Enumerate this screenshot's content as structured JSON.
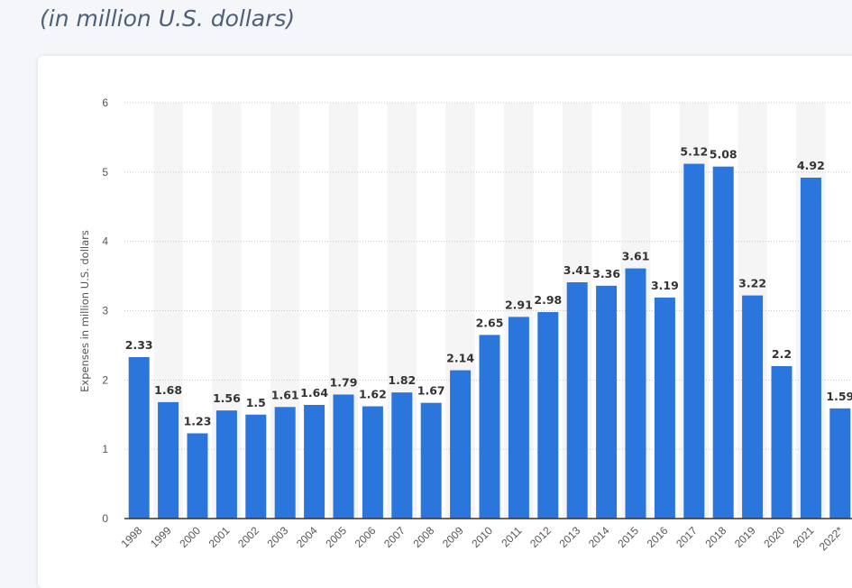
{
  "subtitle": "(in million U.S. dollars)",
  "chart_data": {
    "type": "bar",
    "ylabel": "Expenses in million U.S. dollars",
    "ylim": [
      0,
      6
    ],
    "yticks": [
      0,
      1,
      2,
      3,
      4,
      5,
      6
    ],
    "grid": true,
    "bar_color": "#2a76dd",
    "categories": [
      "1998",
      "1999",
      "2000",
      "2001",
      "2002",
      "2003",
      "2004",
      "2005",
      "2006",
      "2007",
      "2008",
      "2009",
      "2010",
      "2011",
      "2012",
      "2013",
      "2014",
      "2015",
      "2016",
      "2017",
      "2018",
      "2019",
      "2020",
      "2021",
      "2022*"
    ],
    "values": [
      2.33,
      1.68,
      1.23,
      1.56,
      1.5,
      1.61,
      1.64,
      1.79,
      1.62,
      1.82,
      1.67,
      2.14,
      2.65,
      2.91,
      2.98,
      3.41,
      3.36,
      3.61,
      3.19,
      5.12,
      5.08,
      3.22,
      2.2,
      4.92,
      1.59
    ]
  }
}
